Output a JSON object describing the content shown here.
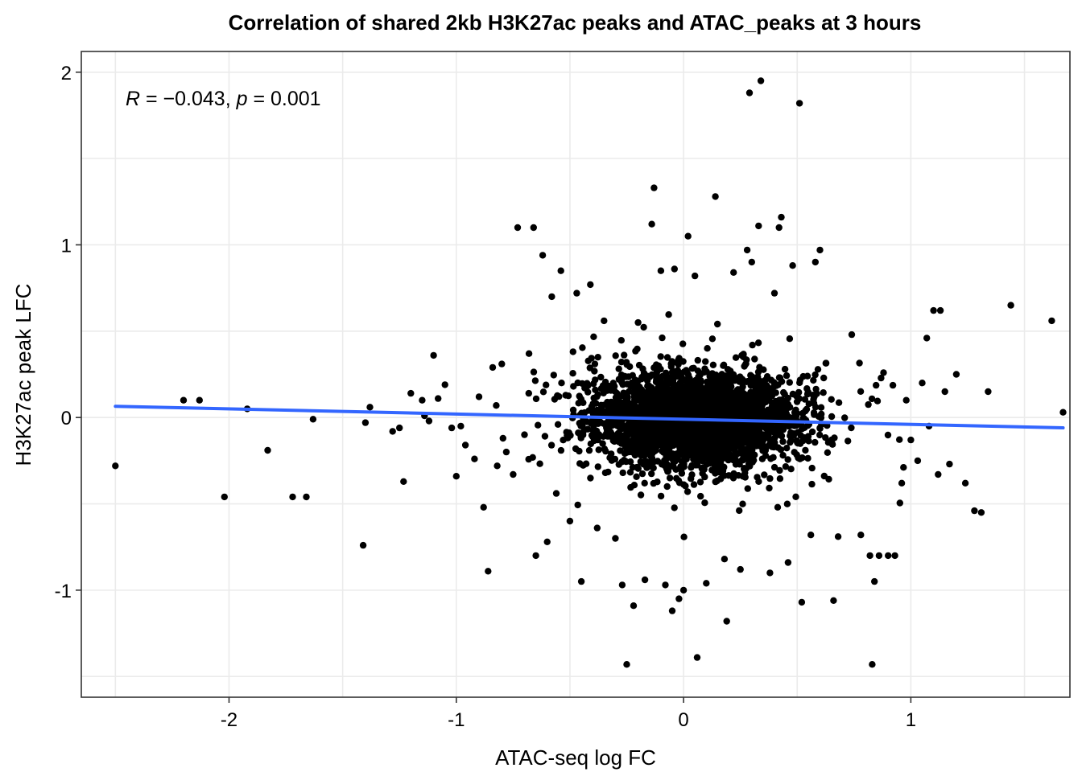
{
  "chart_data": {
    "type": "scatter",
    "title": "Correlation of shared 2kb H3K27ac peaks and ATAC_peaks at 3 hours",
    "xlabel": "ATAC-seq log FC",
    "ylabel": "H3K27ac peak LFC",
    "xlim": [
      -2.65,
      1.7
    ],
    "ylim": [
      -1.62,
      2.12
    ],
    "x_ticks": [
      -2,
      -1,
      0,
      1
    ],
    "x_tick_labels": [
      "-2",
      "-1",
      "0",
      "1"
    ],
    "y_ticks": [
      -1,
      0,
      1,
      2
    ],
    "y_tick_labels": [
      "-1",
      "0",
      "1",
      "2"
    ],
    "grid": true,
    "point_color": "#000000",
    "regression_line": {
      "color": "#3366FF",
      "x": [
        -2.5,
        1.67
      ],
      "y": [
        0.065,
        -0.06
      ]
    },
    "annotation": {
      "R_symbol": "R",
      "R_text": " = −0.043, ",
      "p_symbol": "p",
      "p_text": " = 0.001"
    },
    "outliers": [
      {
        "x": -2.5,
        "y": -0.28
      },
      {
        "x": -2.2,
        "y": 0.1
      },
      {
        "x": -2.13,
        "y": 0.1
      },
      {
        "x": -2.02,
        "y": -0.46
      },
      {
        "x": -1.92,
        "y": 0.05
      },
      {
        "x": -1.83,
        "y": -0.19
      },
      {
        "x": -1.72,
        "y": -0.46
      },
      {
        "x": -1.66,
        "y": -0.46
      },
      {
        "x": -1.63,
        "y": -0.01
      },
      {
        "x": -1.41,
        "y": -0.74
      },
      {
        "x": -1.4,
        "y": -0.03
      },
      {
        "x": -1.38,
        "y": 0.06
      },
      {
        "x": -1.28,
        "y": -0.08
      },
      {
        "x": -1.25,
        "y": -0.06
      },
      {
        "x": -1.2,
        "y": 0.14
      },
      {
        "x": -1.15,
        "y": 0.1
      },
      {
        "x": -1.14,
        "y": 0.01
      },
      {
        "x": -1.12,
        "y": -0.02
      },
      {
        "x": -1.1,
        "y": 0.36
      },
      {
        "x": -1.08,
        "y": 0.11
      },
      {
        "x": -1.05,
        "y": 0.19
      },
      {
        "x": -1.02,
        "y": -0.06
      },
      {
        "x": -1.0,
        "y": -0.34
      },
      {
        "x": -0.98,
        "y": -0.05
      },
      {
        "x": -0.96,
        "y": -0.16
      },
      {
        "x": -0.92,
        "y": -0.24
      },
      {
        "x": -0.9,
        "y": 0.12
      },
      {
        "x": -0.88,
        "y": -0.52
      },
      {
        "x": -0.86,
        "y": -0.89
      },
      {
        "x": -0.84,
        "y": 0.29
      },
      {
        "x": -0.82,
        "y": -0.28
      },
      {
        "x": -0.8,
        "y": 0.31
      },
      {
        "x": -0.78,
        "y": -0.2
      },
      {
        "x": -0.75,
        "y": -0.33
      },
      {
        "x": -0.73,
        "y": 1.1
      },
      {
        "x": -0.7,
        "y": -0.1
      },
      {
        "x": -0.68,
        "y": 0.37
      },
      {
        "x": -0.66,
        "y": 1.1
      },
      {
        "x": -0.65,
        "y": -0.8
      },
      {
        "x": -0.62,
        "y": 0.94
      },
      {
        "x": -0.6,
        "y": -0.72
      },
      {
        "x": -0.58,
        "y": 0.7
      },
      {
        "x": -0.56,
        "y": -0.44
      },
      {
        "x": -0.54,
        "y": 0.85
      },
      {
        "x": -0.5,
        "y": -0.6
      },
      {
        "x": -0.47,
        "y": 0.72
      },
      {
        "x": -0.45,
        "y": -0.95
      },
      {
        "x": -0.41,
        "y": 0.77
      },
      {
        "x": -0.38,
        "y": -0.64
      },
      {
        "x": -0.35,
        "y": 0.56
      },
      {
        "x": -0.3,
        "y": -0.7
      },
      {
        "x": -0.27,
        "y": -0.97
      },
      {
        "x": -0.25,
        "y": -1.43
      },
      {
        "x": -0.22,
        "y": -1.09
      },
      {
        "x": -0.2,
        "y": 0.55
      },
      {
        "x": -0.17,
        "y": -0.94
      },
      {
        "x": -0.14,
        "y": 1.12
      },
      {
        "x": -0.13,
        "y": 1.33
      },
      {
        "x": -0.1,
        "y": 0.85
      },
      {
        "x": -0.08,
        "y": -0.97
      },
      {
        "x": -0.05,
        "y": -1.12
      },
      {
        "x": -0.04,
        "y": 0.86
      },
      {
        "x": -0.02,
        "y": -1.05
      },
      {
        "x": 0.0,
        "y": -1.0
      },
      {
        "x": 0.02,
        "y": 1.05
      },
      {
        "x": 0.05,
        "y": 0.82
      },
      {
        "x": 0.06,
        "y": -1.39
      },
      {
        "x": 0.1,
        "y": -0.96
      },
      {
        "x": 0.14,
        "y": 1.28
      },
      {
        "x": 0.18,
        "y": -0.82
      },
      {
        "x": 0.19,
        "y": -1.18
      },
      {
        "x": 0.22,
        "y": 0.84
      },
      {
        "x": 0.25,
        "y": -0.88
      },
      {
        "x": 0.28,
        "y": 0.97
      },
      {
        "x": 0.29,
        "y": 1.88
      },
      {
        "x": 0.3,
        "y": 0.9
      },
      {
        "x": 0.33,
        "y": 1.11
      },
      {
        "x": 0.34,
        "y": 1.95
      },
      {
        "x": 0.38,
        "y": -0.9
      },
      {
        "x": 0.4,
        "y": 0.72
      },
      {
        "x": 0.42,
        "y": 1.1
      },
      {
        "x": 0.43,
        "y": 1.16
      },
      {
        "x": 0.46,
        "y": -0.84
      },
      {
        "x": 0.48,
        "y": 0.88
      },
      {
        "x": 0.51,
        "y": 1.82
      },
      {
        "x": 0.52,
        "y": -1.07
      },
      {
        "x": 0.56,
        "y": -0.68
      },
      {
        "x": 0.58,
        "y": 0.9
      },
      {
        "x": 0.6,
        "y": 0.97
      },
      {
        "x": 0.66,
        "y": -1.06
      },
      {
        "x": 0.68,
        "y": -0.69
      },
      {
        "x": 0.74,
        "y": 0.48
      },
      {
        "x": 0.78,
        "y": -0.68
      },
      {
        "x": 0.82,
        "y": -0.8
      },
      {
        "x": 0.83,
        "y": -1.43
      },
      {
        "x": 0.84,
        "y": -0.95
      },
      {
        "x": 0.86,
        "y": -0.8
      },
      {
        "x": 0.88,
        "y": 0.26
      },
      {
        "x": 0.9,
        "y": -0.8
      },
      {
        "x": 0.93,
        "y": -0.8
      },
      {
        "x": 0.96,
        "y": -0.38
      },
      {
        "x": 0.98,
        "y": 0.1
      },
      {
        "x": 1.0,
        "y": -0.13
      },
      {
        "x": 1.03,
        "y": -0.25
      },
      {
        "x": 1.05,
        "y": 0.2
      },
      {
        "x": 1.07,
        "y": 0.46
      },
      {
        "x": 1.08,
        "y": -0.05
      },
      {
        "x": 1.1,
        "y": 0.62
      },
      {
        "x": 1.12,
        "y": -0.33
      },
      {
        "x": 1.13,
        "y": 0.62
      },
      {
        "x": 1.15,
        "y": 0.15
      },
      {
        "x": 1.17,
        "y": -0.27
      },
      {
        "x": 1.2,
        "y": 0.25
      },
      {
        "x": 1.24,
        "y": -0.38
      },
      {
        "x": 1.28,
        "y": -0.54
      },
      {
        "x": 1.31,
        "y": -0.55
      },
      {
        "x": 1.34,
        "y": 0.15
      },
      {
        "x": 1.44,
        "y": 0.65
      },
      {
        "x": 1.62,
        "y": 0.56
      },
      {
        "x": 1.67,
        "y": 0.03
      }
    ],
    "cloud": {
      "count": 3400,
      "x_mean": 0.05,
      "x_sd": 0.21,
      "y_mean": -0.01,
      "y_sd": 0.13,
      "seed": 12345
    }
  }
}
